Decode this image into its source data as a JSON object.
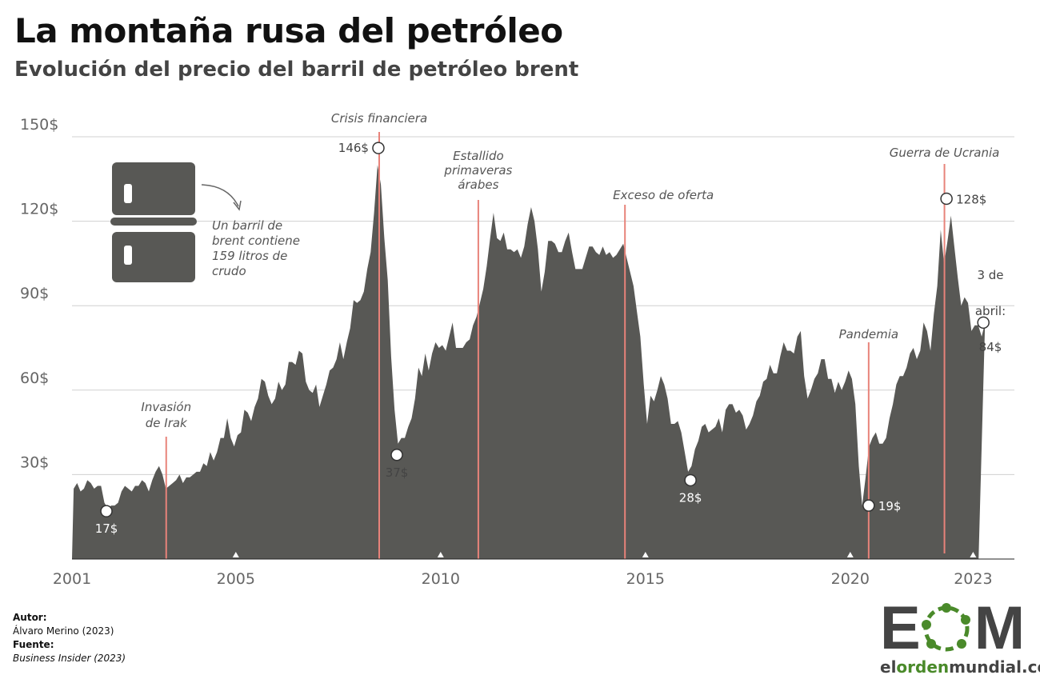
{
  "title": "La montaña rusa del petróleo",
  "subtitle": "Evolución del precio del barril de petróleo brent",
  "barrel_note": [
    "Un barril de",
    "brent contiene",
    "159 litros de",
    "crudo"
  ],
  "credits": {
    "author_label": "Autor:",
    "author": "Álvaro Merino (2023)",
    "source_label": "Fuente:",
    "source": "Business Insider (2023)"
  },
  "logo": {
    "letters": "EOM",
    "url_a": "el",
    "url_b": "orden",
    "url_c": "mundial.com"
  },
  "colors": {
    "area": "#585855",
    "event_line": "#e8837a",
    "grid": "#d0d0d0",
    "logo_green": "#4a8a2a"
  },
  "chart_data": {
    "type": "area",
    "ylim": [
      0,
      150
    ],
    "yticks": [
      30,
      60,
      90,
      120,
      150
    ],
    "ytick_labels": [
      "30$",
      "60$",
      "90$",
      "120$",
      "150$"
    ],
    "xticks": [
      2001,
      2005,
      2010,
      2015,
      2020,
      2023
    ],
    "xtick_labels": [
      "2001",
      "2005",
      "2010",
      "2015",
      "2020",
      "2023"
    ],
    "grid": true,
    "start": "2001-01",
    "monthly_values": [
      25,
      27,
      24,
      25,
      28,
      27,
      25,
      26,
      26,
      20,
      18,
      19,
      19,
      20,
      24,
      26,
      25,
      24,
      26,
      26,
      28,
      27,
      24,
      28,
      31,
      33,
      30,
      25,
      26,
      27,
      28,
      30,
      27,
      29,
      29,
      30,
      31,
      31,
      34,
      33,
      38,
      35,
      38,
      43,
      43,
      50,
      43,
      40,
      44,
      45,
      53,
      52,
      49,
      54,
      57,
      64,
      63,
      58,
      55,
      57,
      63,
      60,
      62,
      70,
      70,
      69,
      74,
      73,
      63,
      60,
      59,
      62,
      54,
      58,
      62,
      67,
      68,
      71,
      77,
      71,
      77,
      82,
      92,
      91,
      92,
      95,
      103,
      109,
      123,
      140,
      133,
      114,
      99,
      72,
      53,
      41,
      43,
      43,
      47,
      50,
      57,
      68,
      65,
      73,
      67,
      73,
      77,
      75,
      76,
      74,
      79,
      84,
      75,
      75,
      75,
      77,
      78,
      83,
      86,
      91,
      96,
      104,
      114,
      123,
      114,
      113,
      116,
      110,
      110,
      109,
      110,
      107,
      111,
      119,
      125,
      120,
      110,
      95,
      102,
      113,
      113,
      112,
      109,
      109,
      113,
      116,
      109,
      103,
      103,
      103,
      107,
      111,
      111,
      109,
      108,
      111,
      108,
      109,
      107,
      108,
      110,
      112,
      107,
      102,
      97,
      88,
      79,
      62,
      48,
      58,
      56,
      60,
      65,
      62,
      57,
      48,
      48,
      49,
      45,
      38,
      31,
      33,
      39,
      42,
      47,
      48,
      45,
      46,
      47,
      50,
      45,
      53,
      55,
      55,
      52,
      53,
      51,
      46,
      48,
      51,
      56,
      58,
      63,
      64,
      69,
      66,
      66,
      72,
      77,
      74,
      74,
      73,
      79,
      81,
      65,
      57,
      60,
      64,
      66,
      71,
      71,
      64,
      64,
      59,
      63,
      60,
      63,
      67,
      64,
      55,
      33,
      19,
      29,
      40,
      43,
      45,
      41,
      41,
      43,
      50,
      55,
      62,
      65,
      65,
      68,
      73,
      75,
      71,
      74,
      84,
      81,
      74,
      87,
      97,
      117,
      105,
      113,
      122,
      111,
      100,
      90,
      93,
      91,
      81,
      83,
      83,
      79,
      84
    ],
    "points": [
      {
        "x": 2001.84,
        "y": 17,
        "label": "17$",
        "pos": "below"
      },
      {
        "x": 2008.48,
        "y": 146,
        "label": "146$",
        "pos": "left"
      },
      {
        "x": 2008.93,
        "y": 37,
        "label": "37$",
        "pos": "below"
      },
      {
        "x": 2016.1,
        "y": 28,
        "label": "28$",
        "pos": "below"
      },
      {
        "x": 2020.45,
        "y": 19,
        "label": "19$",
        "pos": "right"
      },
      {
        "x": 2022.35,
        "y": 128,
        "label": "128$",
        "pos": "right"
      },
      {
        "x": 2023.25,
        "y": 84,
        "label": "3 de|abril:|84$",
        "pos": "above"
      }
    ],
    "events": [
      {
        "x": 2003.3,
        "label": [
          "Invasión",
          "de Irak"
        ]
      },
      {
        "x": 2008.5,
        "label": [
          "Crisis financiera"
        ]
      },
      {
        "x": 2010.92,
        "label": [
          "Estallido",
          "primaveras",
          "árabes"
        ]
      },
      {
        "x": 2014.5,
        "label": [
          "Exceso de oferta"
        ]
      },
      {
        "x": 2020.45,
        "label": [
          "Pandemia"
        ]
      },
      {
        "x": 2022.3,
        "label": [
          "Guerra de Ucrania"
        ]
      }
    ]
  }
}
